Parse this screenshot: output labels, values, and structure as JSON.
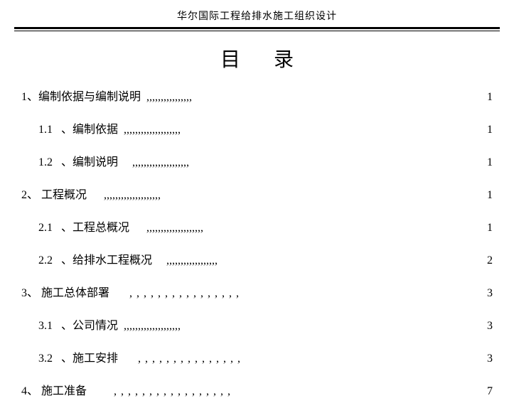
{
  "header": "华尔国际工程给排水施工组织设计",
  "title": "目  录",
  "toc": [
    {
      "level": 0,
      "label": "1、编制依据与编制说明",
      "dots": ",,,,,,,,,,,,,,,,",
      "spaced": false,
      "page": "1"
    },
    {
      "level": 1,
      "label": "1.1   、编制依据",
      "dots": ",,,,,,,,,,,,,,,,,,,,",
      "spaced": false,
      "page": "1"
    },
    {
      "level": 1,
      "label": "1.2   、编制说明",
      "dots": "   ,,,,,,,,,,,,,,,,,,,,",
      "spaced": false,
      "page": "1"
    },
    {
      "level": 0,
      "label": "2、 工程概况",
      "dots": "    ,,,,,,,,,,,,,,,,,,,,",
      "spaced": false,
      "page": "1"
    },
    {
      "level": 1,
      "label": "2.1   、工程总概况",
      "dots": "    ,,,,,,,,,,,,,,,,,,,,",
      "spaced": false,
      "page": "1"
    },
    {
      "level": 1,
      "label": "2.2   、给排水工程概况",
      "dots": "   ,,,,,,,,,,,,,,,,,,",
      "spaced": false,
      "page": "2"
    },
    {
      "level": 0,
      "label": "3、 施工总体部署",
      "dots": "  ,,,,,,,,,,,,,,,,",
      "spaced": true,
      "page": "3"
    },
    {
      "level": 1,
      "label": "3.1   、公司情况",
      "dots": ",,,,,,,,,,,,,,,,,,,,",
      "spaced": false,
      "page": "3"
    },
    {
      "level": 1,
      "label": "3.2   、施工安排",
      "dots": "  ,,,,,,,,,,,,,,,",
      "spaced": true,
      "page": "3"
    },
    {
      "level": 0,
      "label": "4、 施工准备",
      "dots": "   ,,,,,,,,,,,,,,,,,",
      "spaced": true,
      "page": "7"
    }
  ]
}
